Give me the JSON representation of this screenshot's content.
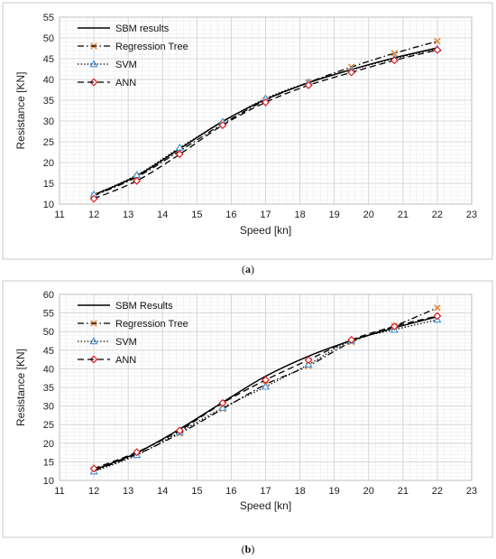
{
  "chart_data": [
    {
      "type": "line",
      "caption_open": "(",
      "caption_letter": "a",
      "caption_close": ")",
      "xlabel": "Speed [kn]",
      "ylabel": "Resistance [KN]",
      "xlim": [
        11,
        23
      ],
      "ylim": [
        10,
        55
      ],
      "xticks": [
        11,
        12,
        13,
        14,
        15,
        16,
        17,
        18,
        19,
        20,
        21,
        22,
        23
      ],
      "yticks": [
        10,
        15,
        20,
        25,
        30,
        35,
        40,
        45,
        50,
        55
      ],
      "grid": true,
      "legend_position": "top-left",
      "series": [
        {
          "name": "SBM results",
          "style": "solid",
          "marker": "none",
          "color": "#000000",
          "marker_color": "#000000",
          "x": [
            12,
            13.25,
            14.5,
            15.75,
            17,
            18.25,
            19.5,
            20.75,
            22
          ],
          "y": [
            12.2,
            16.8,
            23.3,
            29.9,
            35.2,
            39.2,
            42.4,
            45.2,
            47.6
          ]
        },
        {
          "name": "Regression Tree",
          "style": "dashdot",
          "marker": "x",
          "color": "#000000",
          "marker_color": "#e8893a",
          "x": [
            12,
            13.25,
            14.5,
            15.75,
            17,
            18.25,
            19.5,
            20.75,
            22
          ],
          "y": [
            12.0,
            16.5,
            22.8,
            29.3,
            35.0,
            39.3,
            43.0,
            46.3,
            49.2
          ]
        },
        {
          "name": "SVM",
          "style": "dotted",
          "marker": "triangle",
          "color": "#000000",
          "marker_color": "#3a8fd8",
          "x": [
            12,
            13.25,
            14.5,
            15.75,
            17,
            18.25,
            19.5,
            20.75,
            22
          ],
          "y": [
            12.3,
            17.0,
            23.6,
            29.8,
            35.4,
            39.3,
            42.3,
            45.0,
            47.4
          ]
        },
        {
          "name": "ANN",
          "style": "dashed",
          "marker": "diamond",
          "color": "#000000",
          "marker_color": "#d81e1e",
          "x": [
            12,
            13.25,
            14.5,
            15.75,
            17,
            18.25,
            19.5,
            20.75,
            22
          ],
          "y": [
            11.3,
            15.6,
            22.0,
            29.0,
            34.5,
            38.6,
            41.7,
            44.6,
            47.1
          ]
        }
      ]
    },
    {
      "type": "line",
      "caption_open": "(",
      "caption_letter": "b",
      "caption_close": ")",
      "xlabel": "Speed [kn]",
      "ylabel": "Resistance [KN]",
      "xlim": [
        11,
        23
      ],
      "ylim": [
        10,
        60
      ],
      "xticks": [
        11,
        12,
        13,
        14,
        15,
        16,
        17,
        18,
        19,
        20,
        21,
        22,
        23
      ],
      "yticks": [
        10,
        15,
        20,
        25,
        30,
        35,
        40,
        45,
        50,
        55,
        60
      ],
      "grid": true,
      "legend_position": "top-left",
      "series": [
        {
          "name": "SBM Results",
          "style": "solid",
          "marker": "none",
          "color": "#000000",
          "marker_color": "#000000",
          "x": [
            12,
            13.25,
            14.5,
            15.75,
            17,
            18.25,
            19.5,
            20.75,
            22
          ],
          "y": [
            12.8,
            17.4,
            23.8,
            31.0,
            38.0,
            43.4,
            47.6,
            51.0,
            54.0
          ]
        },
        {
          "name": "Regression Tree",
          "style": "dashdot",
          "marker": "x",
          "color": "#000000",
          "marker_color": "#e8893a",
          "x": [
            12,
            13.25,
            14.5,
            15.75,
            17,
            18.25,
            19.5,
            20.75,
            22
          ],
          "y": [
            12.6,
            17.0,
            22.6,
            29.2,
            35.8,
            40.8,
            47.2,
            51.5,
            56.4
          ]
        },
        {
          "name": "SVM",
          "style": "dotted",
          "marker": "triangle",
          "color": "#000000",
          "marker_color": "#3a8fd8",
          "x": [
            12,
            13.25,
            14.5,
            15.75,
            17,
            18.25,
            19.5,
            20.75,
            22
          ],
          "y": [
            12.4,
            16.8,
            23.0,
            29.5,
            35.2,
            41.2,
            47.6,
            50.5,
            53.2
          ]
        },
        {
          "name": "ANN",
          "style": "dashed",
          "marker": "diamond",
          "color": "#000000",
          "marker_color": "#d81e1e",
          "x": [
            12,
            13.25,
            14.5,
            15.75,
            17,
            18.25,
            19.5,
            20.75,
            22
          ],
          "y": [
            13.2,
            17.6,
            23.4,
            30.8,
            37.0,
            42.4,
            47.8,
            51.4,
            54.2
          ]
        }
      ]
    }
  ]
}
